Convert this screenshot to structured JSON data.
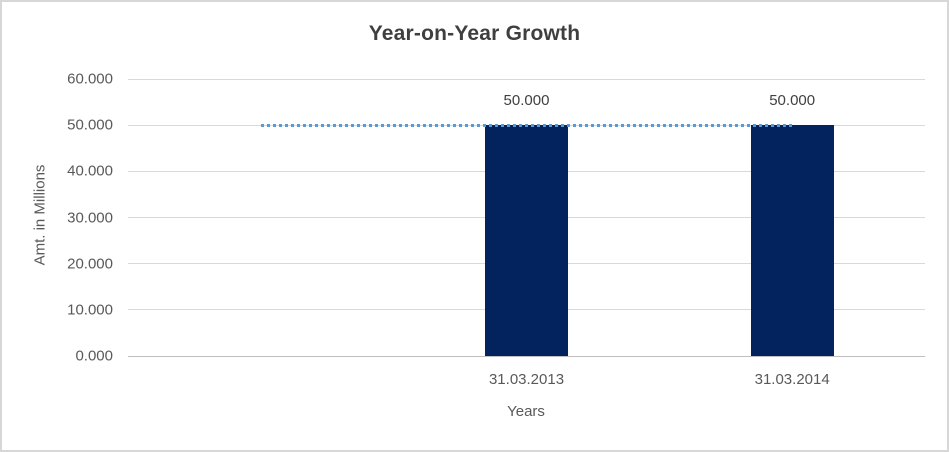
{
  "chart_data": {
    "type": "bar",
    "title": "Year-on-Year Growth",
    "xlabel": "Years",
    "ylabel": "Amt. in Millions",
    "categories": [
      "",
      "31.03.2013",
      "31.03.2014"
    ],
    "series": [
      {
        "name": "amount-bars",
        "type": "bar",
        "color": "#03235e",
        "values": [
          null,
          50.0,
          50.0
        ],
        "data_labels": [
          "",
          "50.000",
          "50.000"
        ]
      },
      {
        "name": "reference-line",
        "type": "line",
        "dash": "dotted",
        "color": "#5b9bd5",
        "values": [
          50.0,
          50.0,
          50.0
        ]
      }
    ],
    "ylim": [
      0,
      60
    ],
    "yticks": [
      {
        "value": 0,
        "label": "0.000"
      },
      {
        "value": 10,
        "label": "10.000"
      },
      {
        "value": 20,
        "label": "20.000"
      },
      {
        "value": 30,
        "label": "30.000"
      },
      {
        "value": 40,
        "label": "40.000"
      },
      {
        "value": 50,
        "label": "50.000"
      },
      {
        "value": 60,
        "label": "60.000"
      }
    ],
    "grid": true,
    "legend": false
  }
}
